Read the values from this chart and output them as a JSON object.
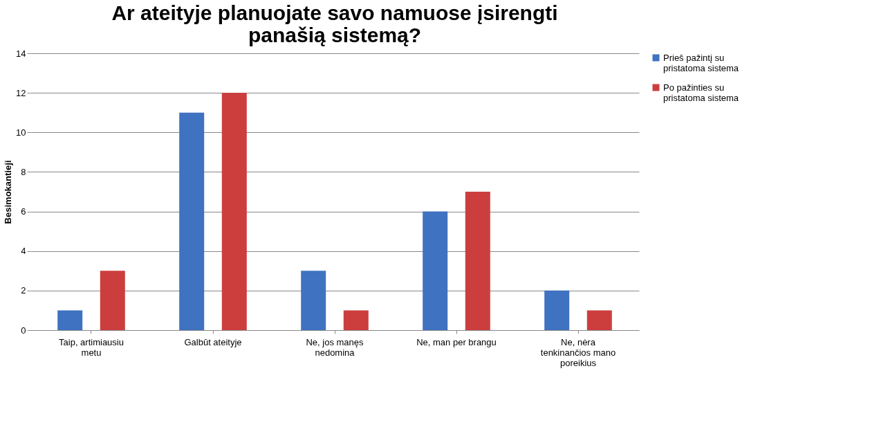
{
  "chart_data": {
    "type": "bar",
    "title": "Ar ateityje planuojate savo namuose įsirengti panašią sistemą?",
    "ylabel": "Besimokantieji",
    "categories": [
      "Taip, artimiausiu metu",
      "Galbūt ateityje",
      "Ne, jos manęs nedomina",
      "Ne, man per brangu",
      "Ne, nėra tenkinančios mano poreikius"
    ],
    "series": [
      {
        "name": "Prieš pažintį su pristatoma sistema",
        "color": "#3f72c0",
        "values": [
          1,
          11,
          3,
          6,
          2
        ]
      },
      {
        "name": "Po pažinties su pristatoma sistema",
        "color": "#cc3e3e",
        "values": [
          3,
          12,
          1,
          7,
          1
        ]
      }
    ],
    "ylim": [
      0,
      14
    ],
    "yticks": [
      0,
      2,
      4,
      6,
      8,
      10,
      12,
      14
    ],
    "grid": "y",
    "legend": "right"
  }
}
